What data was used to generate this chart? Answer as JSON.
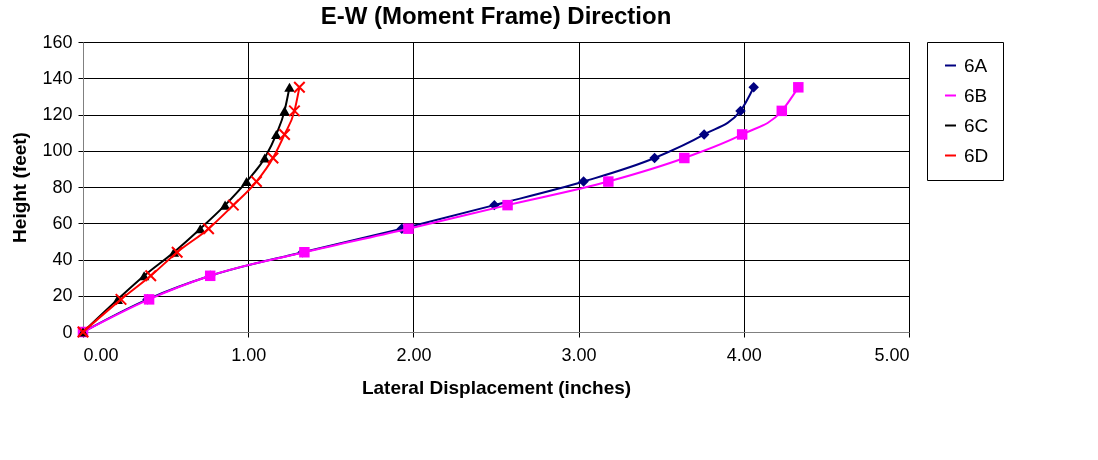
{
  "chart_data": {
    "type": "line",
    "title": "E-W (Moment Frame) Direction",
    "xlabel": "Lateral Displacement (inches)",
    "ylabel": "Height (feet)",
    "xlim": [
      0,
      5
    ],
    "xticks": [
      {
        "value": 0,
        "label": "0.00"
      },
      {
        "value": 1,
        "label": "1.00"
      },
      {
        "value": 2,
        "label": "2.00"
      },
      {
        "value": 3,
        "label": "3.00"
      },
      {
        "value": 4,
        "label": "4.00"
      },
      {
        "value": 5,
        "label": "5.00"
      }
    ],
    "ylim": [
      0,
      160
    ],
    "yticks": [
      0,
      20,
      40,
      60,
      80,
      100,
      120,
      140,
      160
    ],
    "grid": true,
    "legend": "right",
    "series": [
      {
        "name": "6A",
        "color": "#000080",
        "marker": "diamond",
        "x": [
          0,
          0.39,
          0.77,
          1.33,
          1.93,
          2.49,
          3.03,
          3.46,
          3.76,
          3.98,
          4.06
        ],
        "values": [
          0,
          18,
          31,
          44,
          57,
          70,
          83,
          96,
          109,
          122,
          135
        ]
      },
      {
        "name": "6B",
        "color": "#ff00ff",
        "marker": "square",
        "x": [
          0,
          0.4,
          0.77,
          1.34,
          1.97,
          2.57,
          3.18,
          3.64,
          3.99,
          4.23,
          4.33
        ],
        "values": [
          0,
          18,
          31,
          44,
          57,
          70,
          83,
          96,
          109,
          122,
          135
        ]
      },
      {
        "name": "6C",
        "color": "#000000",
        "marker": "triangle",
        "x": [
          0,
          0.21,
          0.37,
          0.55,
          0.71,
          0.86,
          0.99,
          1.1,
          1.17,
          1.22,
          1.25
        ],
        "values": [
          0,
          18,
          31,
          44,
          57,
          70,
          83,
          96,
          109,
          122,
          135
        ]
      },
      {
        "name": "6D",
        "color": "#ff0000",
        "marker": "cross",
        "x": [
          0,
          0.23,
          0.41,
          0.57,
          0.76,
          0.91,
          1.05,
          1.15,
          1.22,
          1.28,
          1.31
        ],
        "values": [
          0,
          18,
          31,
          44,
          57,
          70,
          83,
          96,
          109,
          122,
          135
        ]
      }
    ]
  }
}
